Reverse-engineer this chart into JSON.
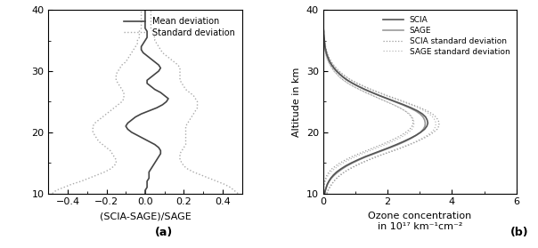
{
  "left_panel": {
    "altitude": [
      10,
      10.5,
      11,
      11.5,
      12,
      12.5,
      13,
      13.5,
      14,
      14.5,
      15,
      15.5,
      16,
      16.5,
      17,
      17.5,
      18,
      18.5,
      19,
      19.5,
      20,
      20.5,
      21,
      21.5,
      22,
      22.5,
      23,
      23.5,
      24,
      24.5,
      25,
      25.5,
      26,
      26.5,
      27,
      27.5,
      28,
      28.5,
      29,
      29.5,
      30,
      30.5,
      31,
      31.5,
      32,
      32.5,
      33,
      33.5,
      34,
      34.5,
      35,
      35.5,
      36,
      36.5,
      37,
      37.5,
      38,
      38.5,
      39,
      39.5,
      40
    ],
    "mean_dev": [
      0.0,
      0.0,
      0.01,
      0.01,
      0.01,
      0.02,
      0.02,
      0.02,
      0.03,
      0.04,
      0.05,
      0.06,
      0.07,
      0.08,
      0.08,
      0.07,
      0.05,
      0.02,
      -0.01,
      -0.04,
      -0.07,
      -0.09,
      -0.1,
      -0.09,
      -0.07,
      -0.05,
      -0.02,
      0.02,
      0.06,
      0.09,
      0.11,
      0.12,
      0.1,
      0.08,
      0.05,
      0.03,
      0.01,
      0.01,
      0.03,
      0.05,
      0.07,
      0.08,
      0.07,
      0.05,
      0.03,
      0.01,
      -0.01,
      -0.02,
      -0.02,
      -0.01,
      0.0,
      0.01,
      0.01,
      0.01,
      0.0,
      0.0,
      0.0,
      0.0,
      0.0,
      0.0,
      0.0
    ],
    "std_dev_pos": [
      0.48,
      0.46,
      0.44,
      0.41,
      0.37,
      0.33,
      0.29,
      0.25,
      0.22,
      0.2,
      0.19,
      0.18,
      0.18,
      0.18,
      0.19,
      0.2,
      0.21,
      0.21,
      0.21,
      0.21,
      0.21,
      0.21,
      0.21,
      0.22,
      0.23,
      0.24,
      0.25,
      0.26,
      0.27,
      0.27,
      0.27,
      0.26,
      0.25,
      0.23,
      0.21,
      0.2,
      0.19,
      0.18,
      0.18,
      0.18,
      0.18,
      0.18,
      0.17,
      0.15,
      0.13,
      0.11,
      0.09,
      0.08,
      0.07,
      0.06,
      0.05,
      0.05,
      0.04,
      0.04,
      0.03,
      0.03,
      0.03,
      0.03,
      0.03,
      0.03,
      0.03
    ],
    "std_dev_neg": [
      -0.48,
      -0.46,
      -0.42,
      -0.38,
      -0.33,
      -0.29,
      -0.25,
      -0.21,
      -0.18,
      -0.16,
      -0.15,
      -0.15,
      -0.16,
      -0.17,
      -0.18,
      -0.2,
      -0.22,
      -0.24,
      -0.25,
      -0.26,
      -0.27,
      -0.27,
      -0.27,
      -0.26,
      -0.24,
      -0.22,
      -0.2,
      -0.18,
      -0.16,
      -0.14,
      -0.12,
      -0.11,
      -0.11,
      -0.11,
      -0.12,
      -0.13,
      -0.14,
      -0.15,
      -0.15,
      -0.15,
      -0.14,
      -0.13,
      -0.12,
      -0.1,
      -0.09,
      -0.08,
      -0.07,
      -0.06,
      -0.05,
      -0.04,
      -0.04,
      -0.03,
      -0.03,
      -0.03,
      -0.02,
      -0.02,
      -0.02,
      -0.02,
      -0.02,
      -0.02,
      -0.02
    ],
    "xlabel": "(SCIA-SAGE)/SAGE",
    "xlim": [
      -0.5,
      0.5
    ],
    "xticks": [
      -0.4,
      -0.2,
      0.0,
      0.2,
      0.4
    ],
    "ylim": [
      10,
      40
    ],
    "yticks": [
      10,
      20,
      30,
      40
    ],
    "mean_color": "#444444",
    "std_color": "#aaaaaa",
    "legend_labels": [
      "Mean deviation",
      "Standard deviation"
    ]
  },
  "right_panel": {
    "altitude": [
      10,
      10.5,
      11,
      11.5,
      12,
      12.5,
      13,
      13.5,
      14,
      14.5,
      15,
      15.5,
      16,
      16.5,
      17,
      17.5,
      18,
      18.5,
      19,
      19.5,
      20,
      20.5,
      21,
      21.5,
      22,
      22.5,
      23,
      23.5,
      24,
      24.5,
      25,
      25.5,
      26,
      26.5,
      27,
      27.5,
      28,
      28.5,
      29,
      29.5,
      30,
      30.5,
      31,
      31.5,
      32,
      32.5,
      33,
      33.5,
      34,
      34.5,
      35,
      35.5,
      36,
      36.5,
      37,
      37.5,
      38,
      38.5,
      39,
      39.5,
      40
    ],
    "scia": [
      0.05,
      0.07,
      0.1,
      0.13,
      0.18,
      0.24,
      0.32,
      0.42,
      0.55,
      0.7,
      0.88,
      1.08,
      1.3,
      1.55,
      1.8,
      2.05,
      2.28,
      2.5,
      2.7,
      2.88,
      3.03,
      3.15,
      3.22,
      3.25,
      3.23,
      3.18,
      3.08,
      2.93,
      2.73,
      2.5,
      2.25,
      2.0,
      1.75,
      1.52,
      1.3,
      1.1,
      0.92,
      0.76,
      0.63,
      0.52,
      0.42,
      0.34,
      0.27,
      0.21,
      0.17,
      0.13,
      0.1,
      0.08,
      0.06,
      0.05,
      0.04,
      0.03,
      0.02,
      0.02,
      0.01,
      0.01,
      0.01,
      0.01,
      0.01,
      0.01,
      0.01
    ],
    "sage": [
      0.05,
      0.07,
      0.1,
      0.14,
      0.19,
      0.26,
      0.35,
      0.46,
      0.59,
      0.74,
      0.92,
      1.12,
      1.34,
      1.59,
      1.84,
      2.09,
      2.33,
      2.54,
      2.73,
      2.89,
      3.02,
      3.11,
      3.16,
      3.17,
      3.15,
      3.1,
      3.01,
      2.87,
      2.68,
      2.46,
      2.22,
      1.98,
      1.74,
      1.51,
      1.29,
      1.09,
      0.91,
      0.75,
      0.62,
      0.51,
      0.41,
      0.33,
      0.26,
      0.2,
      0.16,
      0.12,
      0.09,
      0.07,
      0.06,
      0.05,
      0.04,
      0.03,
      0.02,
      0.02,
      0.01,
      0.01,
      0.01,
      0.01,
      0.01,
      0.01,
      0.01
    ],
    "scia_std_pos": [
      0.12,
      0.16,
      0.21,
      0.27,
      0.34,
      0.43,
      0.54,
      0.67,
      0.83,
      1.01,
      1.21,
      1.43,
      1.67,
      1.93,
      2.2,
      2.46,
      2.7,
      2.92,
      3.12,
      3.29,
      3.43,
      3.54,
      3.59,
      3.6,
      3.57,
      3.5,
      3.39,
      3.23,
      3.02,
      2.78,
      2.52,
      2.26,
      1.99,
      1.74,
      1.5,
      1.28,
      1.07,
      0.89,
      0.74,
      0.61,
      0.5,
      0.41,
      0.33,
      0.26,
      0.21,
      0.16,
      0.13,
      0.1,
      0.08,
      0.06,
      0.05,
      0.04,
      0.03,
      0.02,
      0.02,
      0.01,
      0.01,
      0.01,
      0.01,
      0.01,
      0.01
    ],
    "scia_std_neg": [
      0.01,
      0.01,
      0.02,
      0.03,
      0.05,
      0.08,
      0.12,
      0.18,
      0.27,
      0.39,
      0.53,
      0.7,
      0.89,
      1.11,
      1.35,
      1.58,
      1.82,
      2.04,
      2.24,
      2.42,
      2.57,
      2.69,
      2.76,
      2.79,
      2.78,
      2.74,
      2.66,
      2.54,
      2.38,
      2.18,
      1.97,
      1.75,
      1.54,
      1.33,
      1.13,
      0.94,
      0.78,
      0.64,
      0.52,
      0.43,
      0.34,
      0.28,
      0.22,
      0.17,
      0.13,
      0.1,
      0.08,
      0.06,
      0.05,
      0.04,
      0.03,
      0.02,
      0.02,
      0.01,
      0.01,
      0.01,
      0.01,
      0.01,
      0.01,
      0.01,
      0.01
    ],
    "sage_std_pos": [
      0.11,
      0.15,
      0.2,
      0.26,
      0.33,
      0.42,
      0.52,
      0.65,
      0.8,
      0.98,
      1.18,
      1.4,
      1.63,
      1.89,
      2.16,
      2.42,
      2.66,
      2.88,
      3.07,
      3.23,
      3.36,
      3.45,
      3.49,
      3.5,
      3.47,
      3.4,
      3.3,
      3.15,
      2.95,
      2.72,
      2.47,
      2.21,
      1.95,
      1.7,
      1.46,
      1.25,
      1.05,
      0.87,
      0.72,
      0.59,
      0.48,
      0.39,
      0.31,
      0.24,
      0.19,
      0.15,
      0.12,
      0.09,
      0.07,
      0.06,
      0.05,
      0.04,
      0.03,
      0.02,
      0.02,
      0.01,
      0.01,
      0.01,
      0.01,
      0.01,
      0.01
    ],
    "sage_std_neg": [
      0.01,
      0.01,
      0.02,
      0.04,
      0.07,
      0.11,
      0.16,
      0.24,
      0.35,
      0.48,
      0.63,
      0.8,
      1.0,
      1.22,
      1.46,
      1.7,
      1.94,
      2.16,
      2.36,
      2.52,
      2.66,
      2.76,
      2.81,
      2.82,
      2.81,
      2.76,
      2.68,
      2.55,
      2.38,
      2.19,
      1.97,
      1.75,
      1.53,
      1.32,
      1.12,
      0.93,
      0.77,
      0.63,
      0.52,
      0.42,
      0.34,
      0.27,
      0.21,
      0.16,
      0.12,
      0.09,
      0.07,
      0.06,
      0.04,
      0.03,
      0.03,
      0.02,
      0.02,
      0.01,
      0.01,
      0.01,
      0.01,
      0.01,
      0.01,
      0.01,
      0.01
    ],
    "ylabel": "Altitude in km",
    "xlabel_line1": "Ozone concentration",
    "xlabel_line2": "in 10¹⁷ km⁻¹cm⁻²",
    "xlim": [
      0,
      6
    ],
    "xticks": [
      0,
      2,
      4,
      6
    ],
    "ylim": [
      10,
      40
    ],
    "yticks": [
      10,
      20,
      30,
      40
    ],
    "scia_color": "#555555",
    "sage_color": "#999999",
    "scia_std_color": "#999999",
    "sage_std_color": "#bbbbbb",
    "legend_labels": [
      "SCIA",
      "SAGE",
      "SCIA standard deviation",
      "SAGE standard deviation"
    ]
  },
  "label_a": "(a)",
  "label_b": "(b)"
}
